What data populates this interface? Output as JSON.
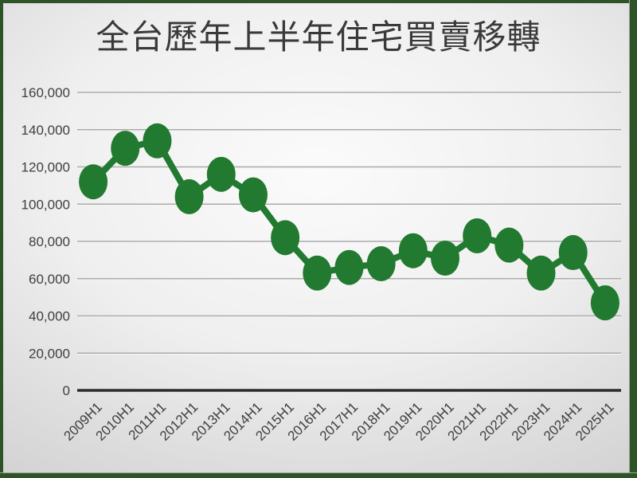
{
  "slide": {
    "title": "全台歷年上半年住宅買賣移轉"
  },
  "chart_data": {
    "type": "line",
    "title": "全台歷年上半年住宅買賣移轉",
    "categories": [
      "2009H1",
      "2010H1",
      "2011H1",
      "2012H1",
      "2013H1",
      "2014H1",
      "2015H1",
      "2016H1",
      "2017H1",
      "2018H1",
      "2019H1",
      "2020H1",
      "2021H1",
      "2022H1",
      "2023H1",
      "2024H1",
      "2025H1"
    ],
    "values": [
      112000,
      130000,
      134000,
      104000,
      116000,
      105000,
      82000,
      63000,
      66000,
      68000,
      75000,
      71000,
      83000,
      78000,
      63000,
      74000,
      47000
    ],
    "xlabel": "",
    "ylabel": "",
    "ylim": [
      0,
      160000
    ],
    "ytick_interval": 20000,
    "x_label_rotation": -45,
    "grid": true,
    "legend": false,
    "marker_style": "large-oval"
  },
  "colors": {
    "series_green": "#217a2f",
    "frame_green": "#2f5329",
    "axis_line": "#2b2b2b",
    "gridline": "#ababab",
    "gridline_highlight": "#f6f6f6",
    "tick_label": "#3f3f3f",
    "title_text": "#3a3a3a"
  }
}
